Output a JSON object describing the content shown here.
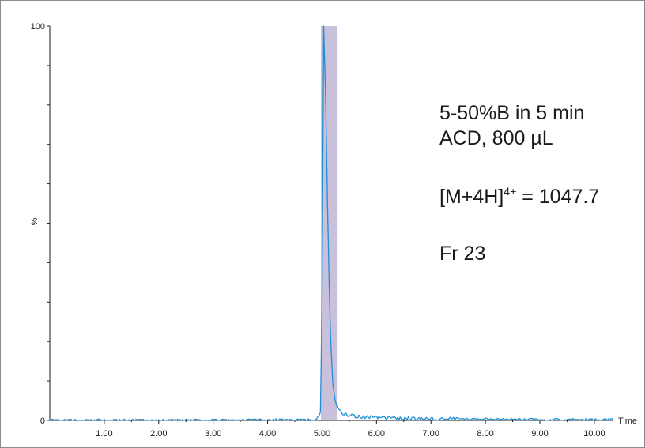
{
  "chart_data": {
    "type": "line",
    "title": "",
    "xlabel": "Time",
    "ylabel": "%",
    "xlim": [
      0,
      10.35
    ],
    "ylim": [
      0,
      100
    ],
    "x_ticks": [
      1.0,
      2.0,
      3.0,
      4.0,
      5.0,
      6.0,
      7.0,
      8.0,
      9.0,
      10.0
    ],
    "x_tick_labels": [
      "1.00",
      "2.00",
      "3.00",
      "4.00",
      "5.00",
      "6.00",
      "7.00",
      "8.00",
      "9.00",
      "10.00"
    ],
    "y_tick_labels": [
      "0",
      "100"
    ],
    "y_ticks": [
      0,
      100
    ],
    "highlight_region": {
      "x_start": 4.98,
      "x_end": 5.27,
      "color": "#c9c1dc"
    },
    "series": [
      {
        "color": "#1f8ed6",
        "x": [
          0.0,
          1.0,
          2.0,
          3.0,
          4.0,
          4.9,
          4.97,
          5.0,
          5.03,
          5.06,
          5.1,
          5.13,
          5.16,
          5.2,
          5.24,
          5.28,
          5.32,
          5.4,
          5.5,
          5.7,
          6.0,
          6.5,
          7.0,
          8.0,
          9.0,
          10.0,
          10.35
        ],
        "y": [
          0.1,
          0.1,
          0.1,
          0.1,
          0.15,
          0.2,
          2.0,
          30.0,
          100.0,
          85.0,
          55.0,
          35.0,
          20.0,
          9.0,
          5.0,
          3.2,
          2.5,
          1.7,
          1.3,
          0.9,
          0.7,
          0.5,
          0.4,
          0.3,
          0.25,
          0.2,
          0.2
        ]
      }
    ]
  },
  "annotation": {
    "line1": "5-50%B in 5 min",
    "line2": "ACD, 800 µL",
    "ion_main": "[M+4H]",
    "ion_charge": "4+",
    "ion_value": " = 1047.7",
    "fraction": "Fr 23"
  },
  "colors": {
    "trace": "#1f8ed6",
    "highlight": "#c9c1dc",
    "axis": "#1a1a1a"
  }
}
